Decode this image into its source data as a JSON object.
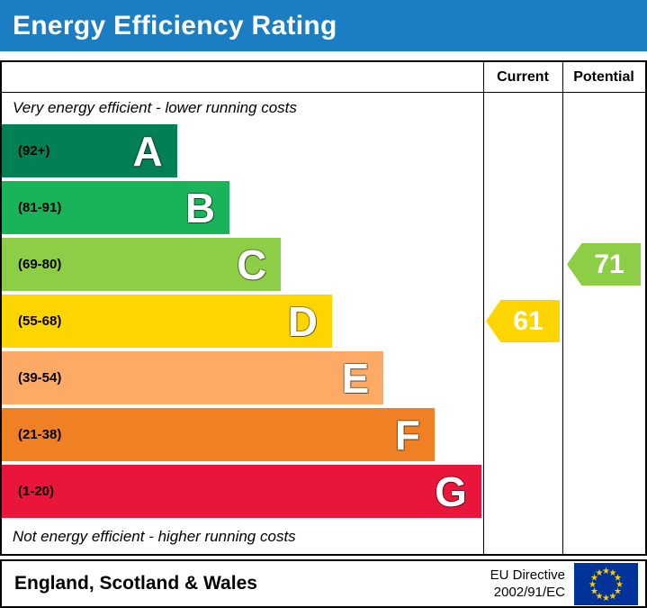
{
  "header": {
    "title": "Energy Efficiency Rating",
    "bg_color": "#1b7ec2",
    "text_color": "#ffffff"
  },
  "table": {
    "columns": {
      "current": "Current",
      "potential": "Potential"
    },
    "top_note": "Very energy efficient - lower running costs",
    "bottom_note": "Not energy efficient - higher running costs"
  },
  "chart_data": {
    "type": "bar",
    "title": "Energy Efficiency Rating",
    "bands": [
      {
        "letter": "A",
        "range": "(92+)",
        "color": "#008054",
        "width_pct": 36.4
      },
      {
        "letter": "B",
        "range": "(81-91)",
        "color": "#19b459",
        "width_pct": 47.3
      },
      {
        "letter": "C",
        "range": "(69-80)",
        "color": "#8dce46",
        "width_pct": 58.0
      },
      {
        "letter": "D",
        "range": "(55-68)",
        "color": "#ffd500",
        "width_pct": 68.6
      },
      {
        "letter": "E",
        "range": "(39-54)",
        "color": "#fcaa65",
        "width_pct": 79.3
      },
      {
        "letter": "F",
        "range": "(21-38)",
        "color": "#ef8023",
        "width_pct": 89.9
      },
      {
        "letter": "G",
        "range": "(1-20)",
        "color": "#e9153b",
        "width_pct": 99.6
      }
    ],
    "current": {
      "value": 61,
      "band": "D",
      "color": "#ffd500"
    },
    "potential": {
      "value": 71,
      "band": "C",
      "color": "#8dce46"
    }
  },
  "footer": {
    "region": "England, Scotland & Wales",
    "directive_line1": "EU Directive",
    "directive_line2": "2002/91/EC",
    "eu_flag": {
      "bg": "#003399",
      "star_color": "#ffcc00"
    }
  }
}
